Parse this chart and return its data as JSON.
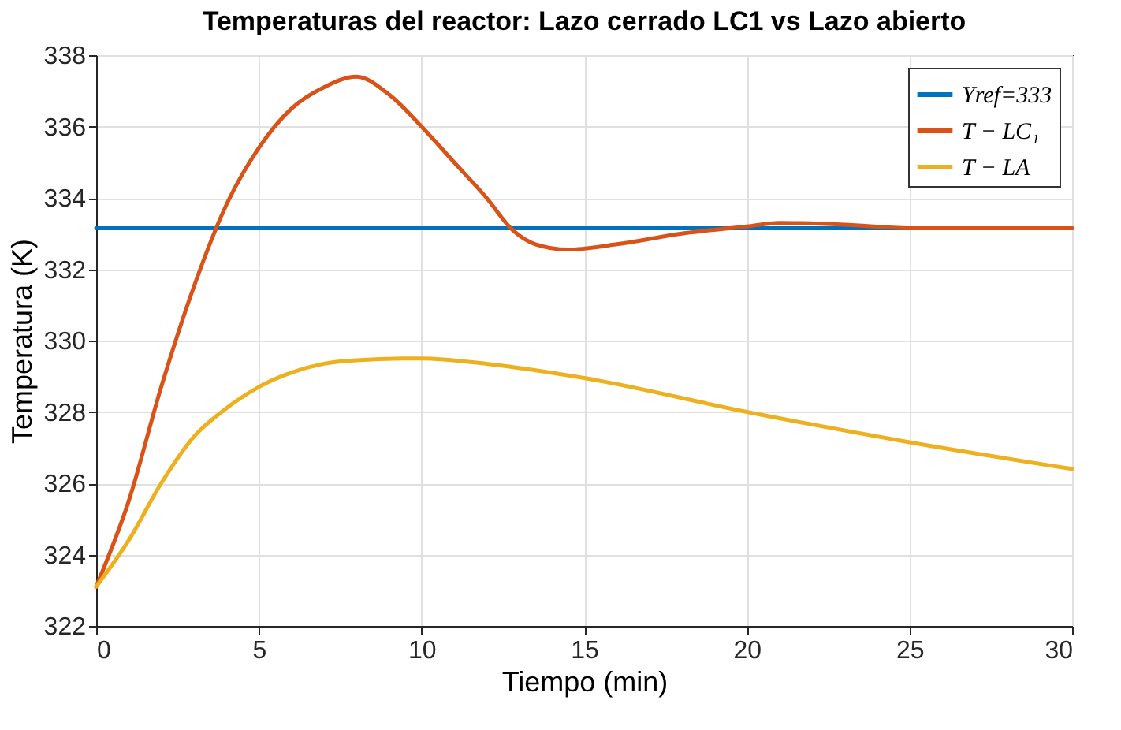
{
  "chart_data": {
    "type": "line",
    "title": "Temperaturas del reactor: Lazo cerrado LC1 vs Lazo abierto",
    "xlabel": "Tiempo (min)",
    "ylabel": "Temperatura (K)",
    "xlim": [
      0,
      30
    ],
    "xticks": [
      0,
      5,
      10,
      15,
      20,
      25,
      30
    ],
    "ylim": [
      322,
      338
    ],
    "yticks": [
      322,
      324,
      326,
      328,
      330,
      332,
      334,
      336,
      338
    ],
    "grid": true,
    "legend": "top right",
    "line_style": "solid",
    "marker": "none",
    "series": [
      {
        "name": "Yref=333",
        "color": "#0072bd",
        "x": [
          0,
          30
        ],
        "values": [
          333.15,
          333.15
        ]
      },
      {
        "name": "T − LC₁",
        "color": "#d95319",
        "x": [
          0,
          1,
          2,
          3,
          4,
          5,
          6,
          7,
          8,
          9,
          10,
          11,
          12,
          12.8,
          13.5,
          14.5,
          16,
          18,
          20,
          21,
          23,
          25,
          30
        ],
        "values": [
          323.1,
          325.5,
          328.7,
          331.5,
          333.8,
          335.4,
          336.5,
          337.1,
          337.4,
          336.9,
          336.0,
          335.0,
          334.0,
          333.1,
          332.7,
          332.55,
          332.7,
          333.0,
          333.2,
          333.3,
          333.25,
          333.15,
          333.15
        ]
      },
      {
        "name": "T − LA",
        "color": "#edb120",
        "x": [
          0,
          1,
          2,
          3,
          4,
          5,
          6,
          7,
          8,
          10,
          12,
          15,
          20,
          25,
          30
        ],
        "values": [
          323.1,
          324.4,
          326.0,
          327.3,
          328.1,
          328.7,
          329.1,
          329.35,
          329.45,
          329.5,
          329.35,
          328.95,
          328.0,
          327.15,
          326.4
        ]
      }
    ]
  }
}
